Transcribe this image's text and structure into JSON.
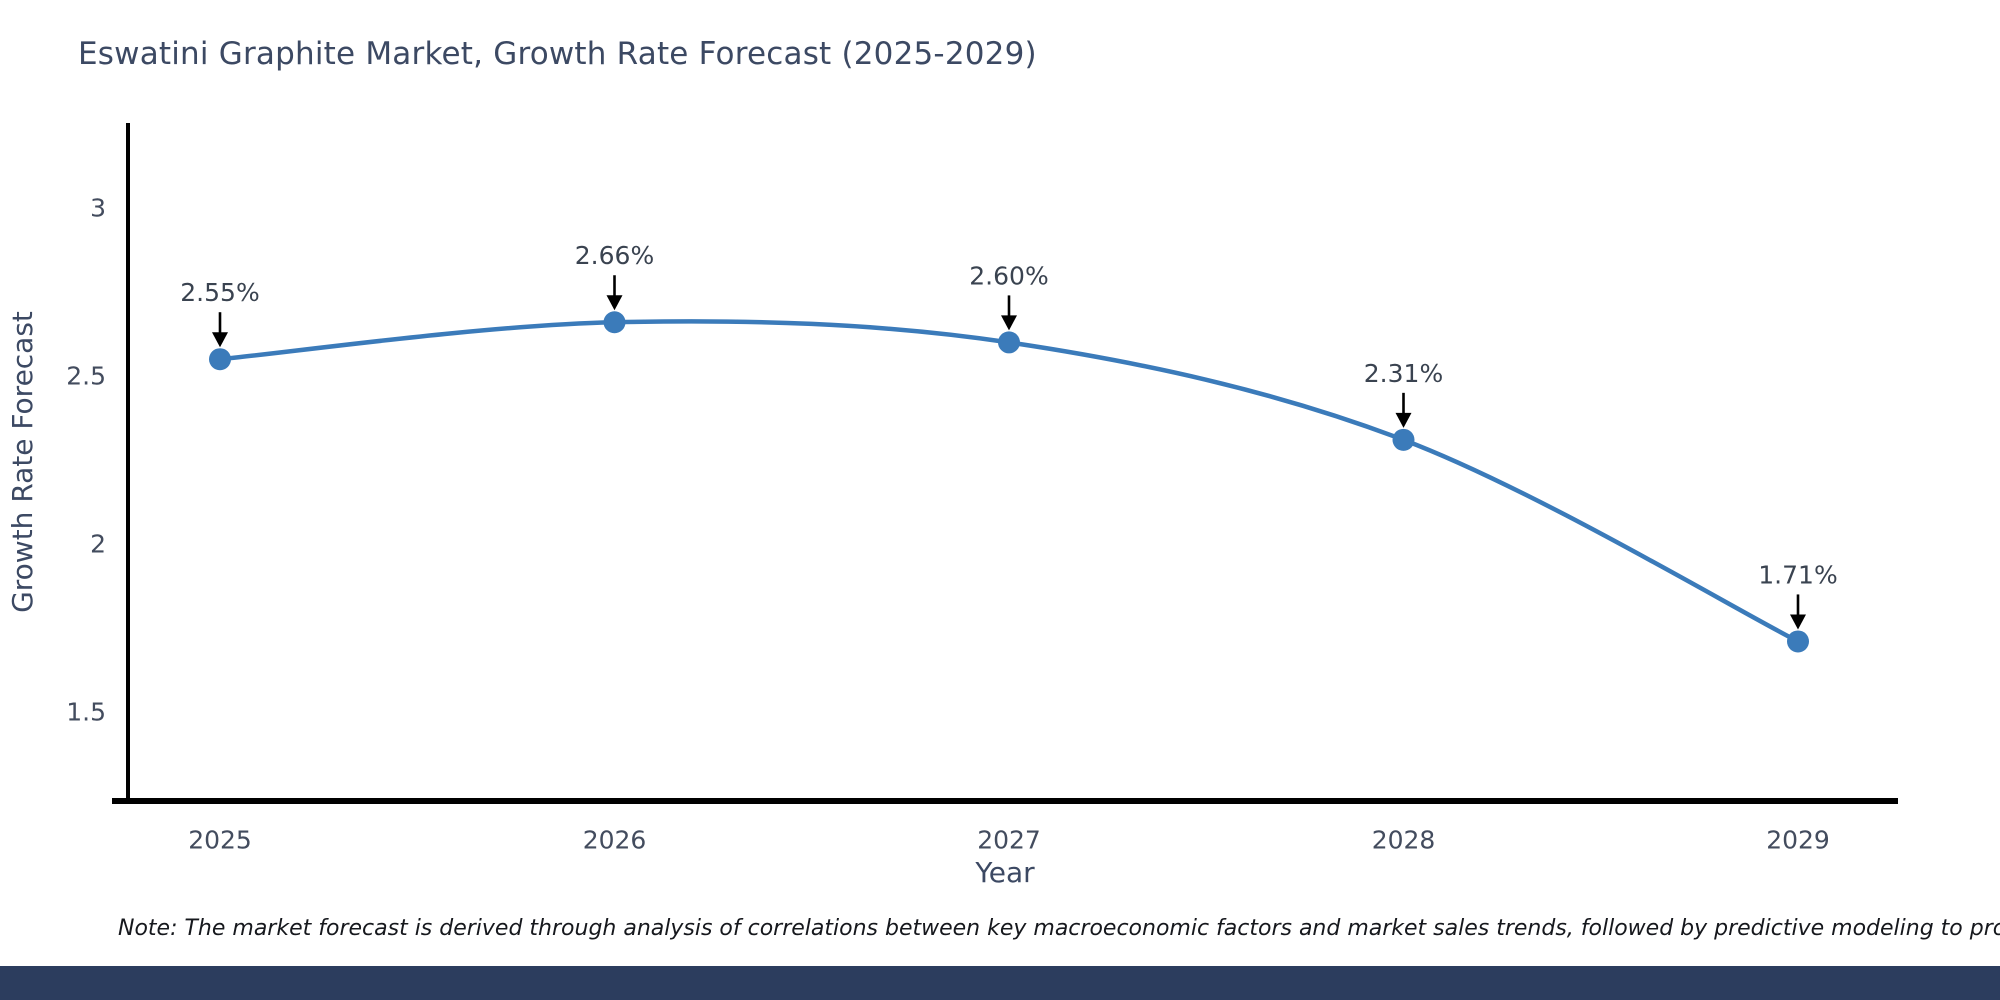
{
  "title": "Eswatini Graphite Market, Growth Rate Forecast (2025-2029)",
  "note": "Note: The market forecast is derived through analysis of correlations between key macroeconomic factors and market sales trends, followed by predictive modeling to project future sales",
  "chart_data": {
    "type": "line",
    "line_shape": "spline",
    "title": "Eswatini Graphite Market, Growth Rate Forecast (2025-2029)",
    "xlabel": "Year",
    "ylabel": "Growth Rate Forecast",
    "categories": [
      "2025",
      "2026",
      "2027",
      "2028",
      "2029"
    ],
    "series": [
      {
        "name": "Growth Rate Forecast",
        "values": [
          2.55,
          2.66,
          2.6,
          2.31,
          1.71
        ]
      }
    ],
    "point_labels": [
      "2.55%",
      "2.66%",
      "2.60%",
      "2.31%",
      "1.71%"
    ],
    "yticks": [
      3,
      2.5,
      2,
      1.5
    ],
    "ytick_labels": [
      "3",
      "2.5",
      "2",
      "1.5"
    ],
    "ylim": [
      1.23,
      3.25
    ],
    "grid": false,
    "legend": "none",
    "annotations": "black arrows pointing down onto each data point"
  },
  "colors": {
    "line": "#3b7bba",
    "marker": "#3b7bba",
    "arrow": "#000000",
    "annotation_text": "#3a4350",
    "tick_text": "#434c5e",
    "axis_title_text": "#3c4963",
    "title_text": "#3c4963",
    "spine": "#000000",
    "footer_bar": "#2c3d5e",
    "note_text": "#16181d",
    "background": "#ffffff"
  }
}
